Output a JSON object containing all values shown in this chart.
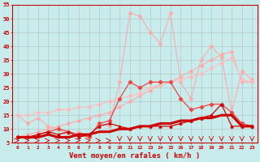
{
  "x": [
    0,
    1,
    2,
    3,
    4,
    5,
    6,
    7,
    8,
    9,
    10,
    11,
    12,
    13,
    14,
    15,
    16,
    17,
    18,
    19,
    20,
    21,
    22,
    23
  ],
  "line_dark_red_thick": [
    7,
    7,
    7,
    8,
    7,
    7,
    8,
    8,
    9,
    9,
    10,
    10,
    11,
    11,
    12,
    12,
    13,
    13,
    14,
    14,
    15,
    15,
    11,
    11
  ],
  "line_dark_red_markers": [
    7,
    7,
    8,
    9,
    8,
    9,
    7,
    8,
    11,
    12,
    11,
    10,
    11,
    11,
    11,
    11,
    12,
    13,
    14,
    15,
    19,
    11,
    11,
    11
  ],
  "line_medium_red_markers": [
    7,
    7,
    8,
    9,
    10,
    9,
    8,
    7,
    12,
    13,
    21,
    27,
    25,
    27,
    27,
    27,
    21,
    17,
    18,
    19,
    19,
    16,
    12,
    11
  ],
  "line_light_pink_wavy": [
    15,
    12,
    14,
    11,
    10,
    7,
    9,
    7,
    12,
    11,
    27,
    52,
    51,
    45,
    41,
    52,
    27,
    21,
    35,
    40,
    36,
    16,
    31,
    28
  ],
  "line_light_pink_linear1": [
    7,
    8,
    9,
    10,
    11,
    12,
    13,
    14,
    15,
    16,
    18,
    20,
    22,
    24,
    26,
    27,
    29,
    31,
    33,
    35,
    37,
    38,
    27,
    27
  ],
  "line_light_pink_linear2": [
    15,
    15,
    16,
    16,
    17,
    17,
    18,
    18,
    19,
    20,
    21,
    22,
    23,
    25,
    26,
    27,
    28,
    29,
    30,
    32,
    34,
    36,
    28,
    27
  ],
  "bg_color": "#c8ecec",
  "grid_color": "#b0b0b0",
  "color_dark_red": "#cc0000",
  "color_medium_red": "#ee4444",
  "color_light_pink": "#ffaaaa",
  "color_pink": "#ff8888",
  "xlabel": "Vent moyen/en rafales ( km/h )",
  "ylim": [
    5,
    55
  ],
  "xlim": [
    -0.5,
    23.5
  ],
  "yticks": [
    5,
    10,
    15,
    20,
    25,
    30,
    35,
    40,
    45,
    50,
    55
  ]
}
